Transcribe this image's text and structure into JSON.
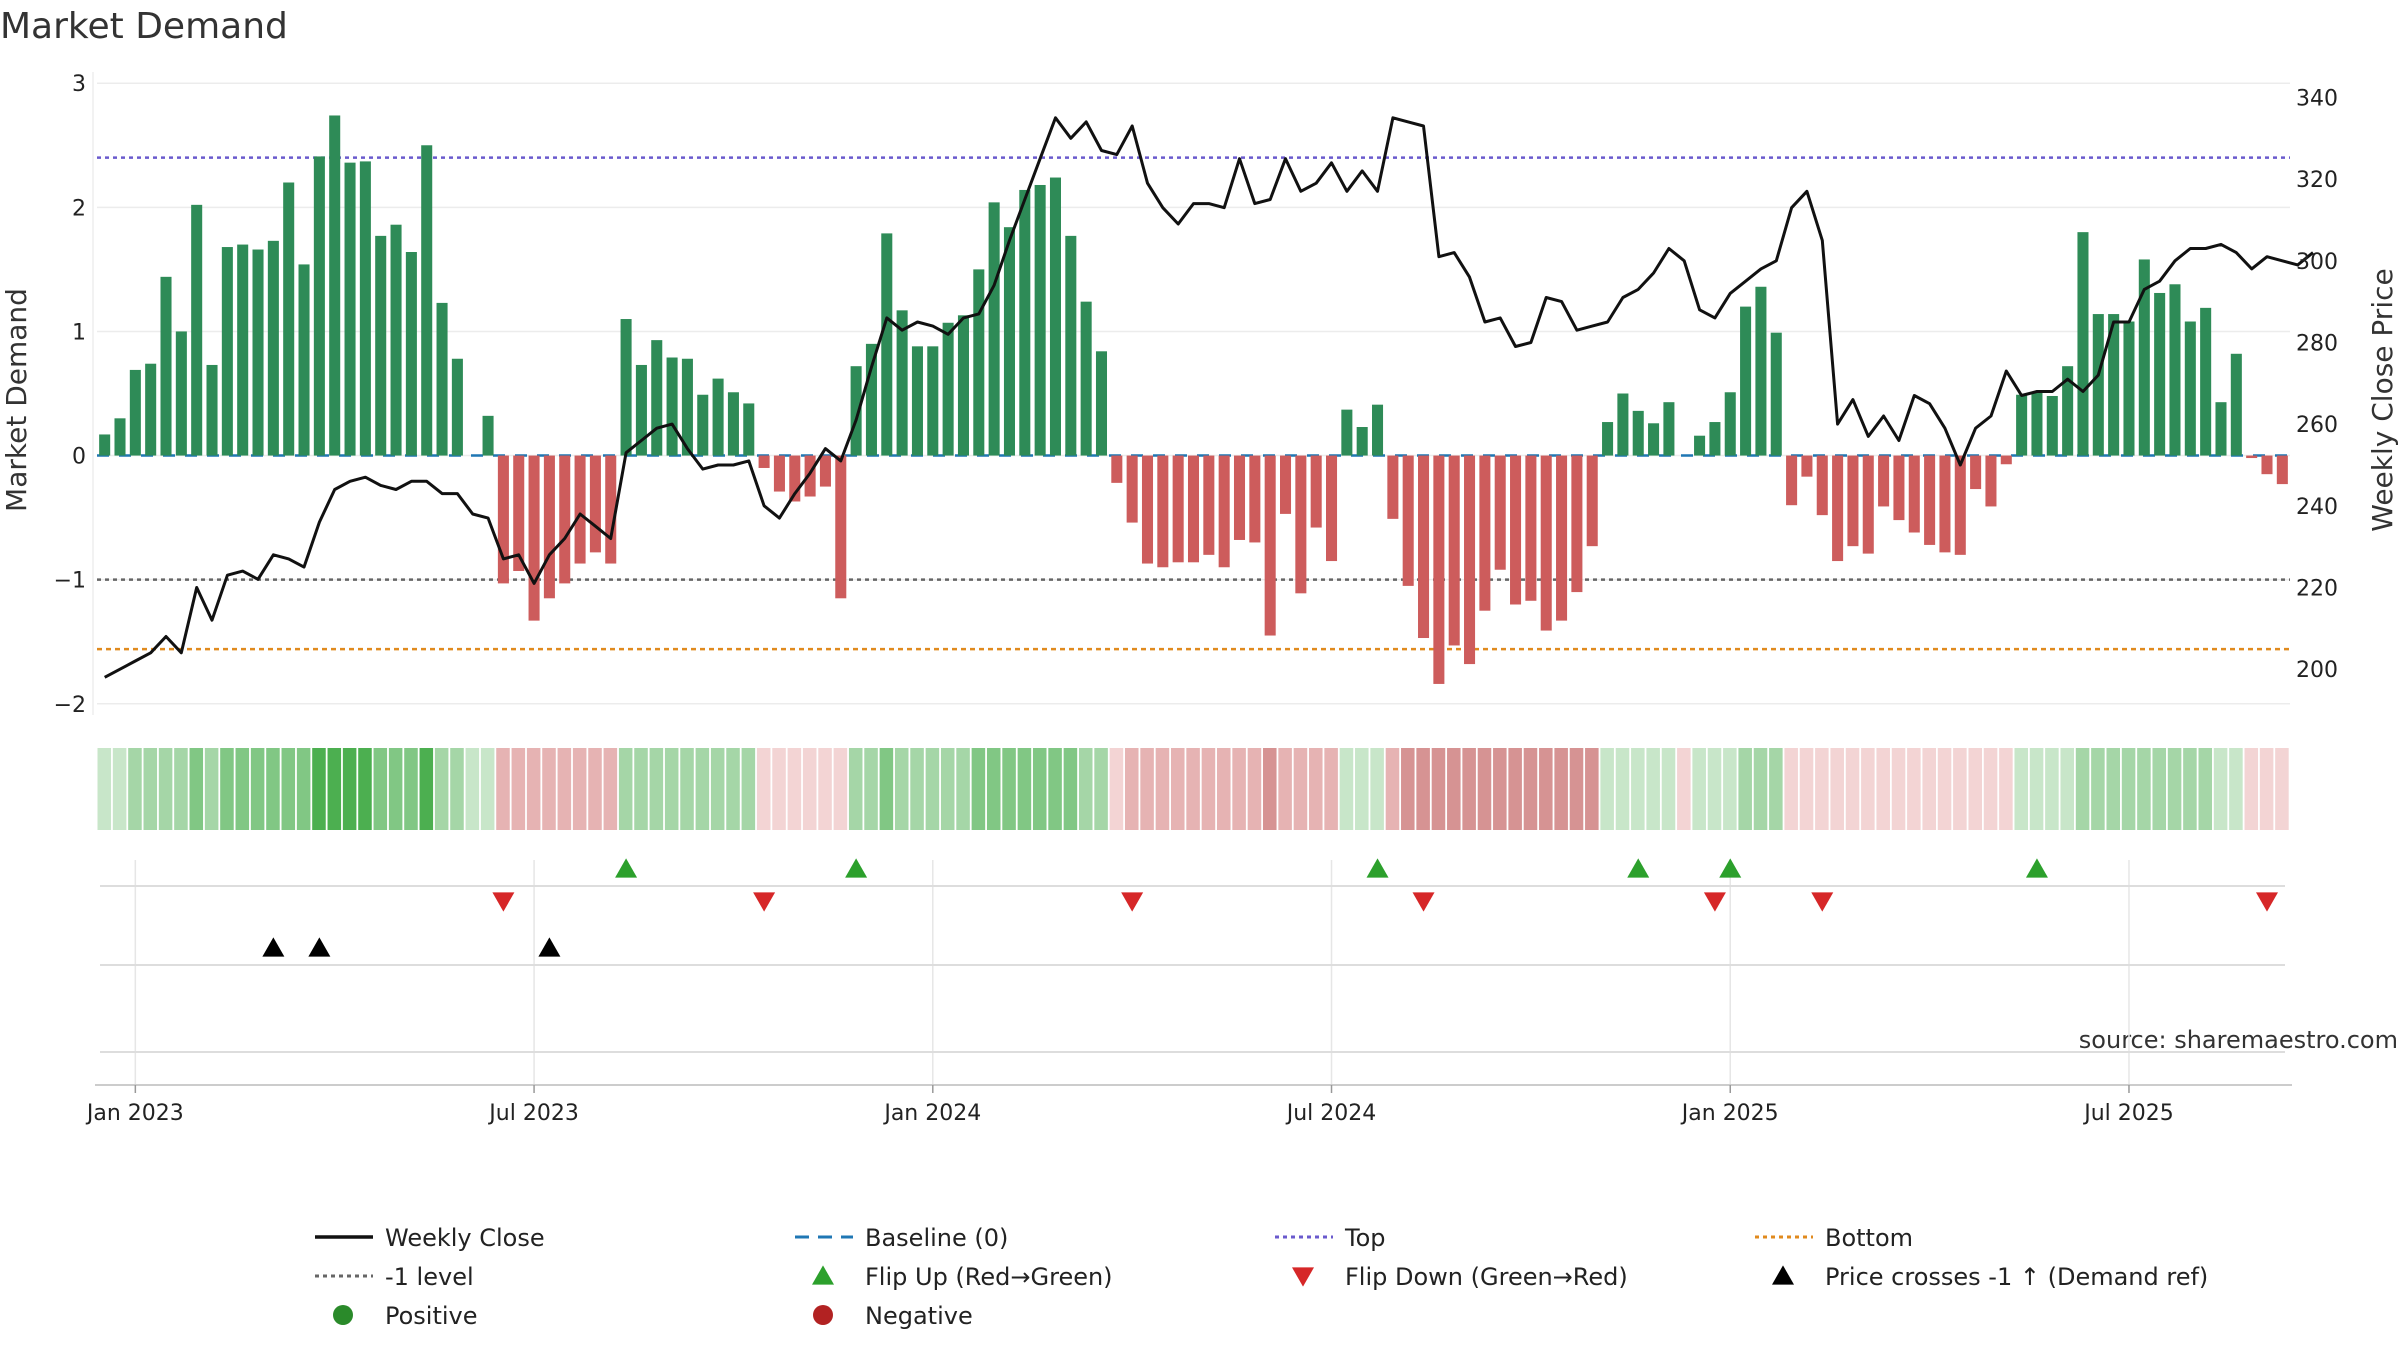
{
  "chart_data": {
    "type": "bar+line",
    "title": "Market Demand",
    "source": "source: sharemaestro.com",
    "y_left": {
      "label": "Market Demand",
      "range": [
        -2.05,
        3.05
      ],
      "ticks": [
        3,
        2,
        1,
        0,
        -1,
        -2
      ],
      "tick_labels": [
        "3",
        "2",
        "1",
        "0",
        "−1",
        "−2"
      ]
    },
    "y_right": {
      "label": "Weekly Close Price",
      "range": [
        190,
        345
      ],
      "ticks": [
        200,
        220,
        240,
        260,
        280,
        300,
        320,
        340
      ],
      "tick_labels": [
        "200",
        "220",
        "240",
        "260",
        "280",
        "300",
        "320",
        "340"
      ]
    },
    "x_ticks": [
      {
        "index": 2,
        "label": "Jan 2023"
      },
      {
        "index": 28,
        "label": "Jul 2023"
      },
      {
        "index": 54,
        "label": "Jan 2024"
      },
      {
        "index": 80,
        "label": "Jul 2024"
      },
      {
        "index": 106,
        "label": "Jan 2025"
      },
      {
        "index": 132,
        "label": "Jul 2025"
      }
    ],
    "reference_lines": {
      "top": 2.4,
      "minus1": -1,
      "bottom": -1.56,
      "baseline": 0
    },
    "demand": [
      0.17,
      0.3,
      0.69,
      0.74,
      1.44,
      1.0,
      2.02,
      0.73,
      1.68,
      1.7,
      1.66,
      1.73,
      2.2,
      1.54,
      2.41,
      2.74,
      2.36,
      2.37,
      1.77,
      1.86,
      1.64,
      2.5,
      1.23,
      0.78,
      0.0,
      0.32,
      -1.03,
      -0.93,
      -1.33,
      -1.15,
      -1.03,
      -0.87,
      -0.78,
      -0.87,
      1.1,
      0.73,
      0.93,
      0.79,
      0.78,
      0.49,
      0.62,
      0.51,
      0.42,
      -0.1,
      -0.29,
      -0.37,
      -0.33,
      -0.25,
      -1.15,
      0.72,
      0.9,
      1.79,
      1.17,
      0.88,
      0.88,
      1.07,
      1.13,
      1.5,
      2.04,
      1.84,
      2.14,
      2.18,
      2.24,
      1.77,
      1.24,
      0.84,
      -0.22,
      -0.54,
      -0.87,
      -0.9,
      -0.86,
      -0.86,
      -0.8,
      -0.9,
      -0.68,
      -0.7,
      -1.45,
      -0.47,
      -1.11,
      -0.58,
      -0.85,
      0.37,
      0.23,
      0.41,
      -0.51,
      -1.05,
      -1.47,
      -1.84,
      -1.53,
      -1.68,
      -1.25,
      -0.92,
      -1.2,
      -1.17,
      -1.41,
      -1.33,
      -1.1,
      -0.73,
      0.27,
      0.5,
      0.36,
      0.26,
      0.43,
      0.0,
      0.16,
      0.27,
      0.51,
      1.2,
      1.36,
      0.99,
      -0.4,
      -0.17,
      -0.48,
      -0.85,
      -0.73,
      -0.79,
      -0.41,
      -0.52,
      -0.62,
      -0.72,
      -0.78,
      -0.8,
      -0.27,
      -0.41,
      -0.07,
      0.49,
      0.51,
      0.48,
      0.72,
      1.8,
      1.14,
      1.14,
      1.08,
      1.58,
      1.31,
      1.38,
      1.08,
      1.19,
      0.43,
      0.82,
      -0.02,
      -0.15,
      -0.23
    ],
    "color_strip": [
      1,
      1,
      2,
      2,
      2,
      2,
      3,
      2,
      3,
      3,
      3,
      3,
      3,
      3,
      4,
      4,
      4,
      4,
      3,
      3,
      3,
      4,
      2,
      2,
      1,
      1,
      -2,
      -2,
      -2,
      -2,
      -2,
      -2,
      -2,
      -2,
      2,
      2,
      2,
      2,
      2,
      2,
      2,
      2,
      2,
      -1,
      -1,
      -1,
      -1,
      -1,
      -1,
      2,
      2,
      3,
      2,
      2,
      2,
      2,
      2,
      3,
      3,
      3,
      3,
      3,
      3,
      3,
      2,
      2,
      -1,
      -2,
      -2,
      -2,
      -2,
      -2,
      -2,
      -2,
      -2,
      -2,
      -3,
      -2,
      -2,
      -2,
      -2,
      1,
      1,
      1,
      -2,
      -3,
      -3,
      -3,
      -3,
      -3,
      -3,
      -3,
      -3,
      -3,
      -3,
      -3,
      -3,
      -3,
      1,
      1,
      1,
      1,
      1,
      -1,
      1,
      1,
      1,
      2,
      2,
      2,
      -1,
      -1,
      -1,
      -1,
      -1,
      -1,
      -1,
      -1,
      -1,
      -1,
      -1,
      -1,
      -1,
      -1,
      -1,
      1,
      1,
      1,
      1,
      2,
      2,
      2,
      2,
      2,
      2,
      2,
      2,
      2,
      1,
      1,
      -1,
      -1,
      -1
    ],
    "price": [
      198,
      200,
      202,
      204,
      208,
      204,
      220,
      212,
      223,
      224,
      222,
      228,
      227,
      225,
      236,
      244,
      246,
      247,
      245,
      244,
      246,
      246,
      243,
      243,
      238,
      237,
      227,
      228,
      221,
      228,
      232,
      238,
      235,
      232,
      253,
      256,
      259,
      260,
      254,
      249,
      250,
      250,
      251,
      240,
      237,
      243,
      248,
      254,
      251,
      261,
      274,
      286,
      283,
      285,
      284,
      282,
      286,
      287,
      294,
      305,
      315,
      325,
      335,
      330,
      334,
      327,
      326,
      333,
      319,
      313,
      309,
      314,
      314,
      313,
      325,
      314,
      315,
      325,
      317,
      319,
      324,
      317,
      322,
      317,
      335,
      334,
      333,
      301,
      302,
      296,
      285,
      286,
      279,
      280,
      291,
      290,
      283,
      284,
      285,
      291,
      293,
      297,
      303,
      300,
      288,
      286,
      292,
      295,
      298,
      300,
      313,
      317,
      305,
      260,
      266,
      257,
      262,
      256,
      267,
      265,
      259,
      250,
      259,
      262,
      273,
      267,
      268,
      268,
      271,
      268,
      272,
      285,
      285,
      293,
      295,
      300,
      303,
      303,
      304,
      302,
      298,
      301,
      300,
      299,
      302
    ],
    "flip_up": [
      34,
      49,
      83,
      100,
      106,
      126
    ],
    "flip_down": [
      26,
      43,
      67,
      86,
      105,
      112,
      141
    ],
    "price_cross": [
      11,
      14,
      29
    ],
    "legend": [
      {
        "label": "Weekly Close",
        "icon": "solid-line",
        "color": "#111111"
      },
      {
        "label": "Baseline (0)",
        "icon": "dashed-line",
        "color": "#1f77b4"
      },
      {
        "label": "Top",
        "icon": "dotted-line",
        "color": "#6a5acd"
      },
      {
        "label": "Bottom",
        "icon": "dotted-line",
        "color": "#e08a1e"
      },
      {
        "label": "-1 level",
        "icon": "dotted-line",
        "color": "#666666"
      },
      {
        "label": "Flip Up (Red→Green)",
        "icon": "triangle-up",
        "color": "#2ca02c"
      },
      {
        "label": "Flip Down (Green→Red)",
        "icon": "triangle-down",
        "color": "#d62728"
      },
      {
        "label": "Price crosses -1 ↑ (Demand ref)",
        "icon": "triangle-up",
        "color": "#000000"
      },
      {
        "label": "Positive",
        "icon": "circle",
        "color": "#2a8a2a"
      },
      {
        "label": "Negative",
        "icon": "circle",
        "color": "#b22222"
      }
    ]
  },
  "colors": {
    "bar_positive": "#2e8b57",
    "bar_negative": "#cd5c5c",
    "price_line": "#111111",
    "baseline": "#1f77b4",
    "top_line": "#6a5acd",
    "minus1_line": "#666666",
    "bottom_line": "#e08a1e",
    "strip_positive": [
      "#c8e6c9",
      "#a5d6a7",
      "#81c784",
      "#4caf50"
    ],
    "strip_negative": [
      "#f3d4d4",
      "#e6b3b3",
      "#d69393"
    ],
    "flip_up": "#2ca02c",
    "flip_down": "#d62728",
    "cross": "#000000"
  }
}
